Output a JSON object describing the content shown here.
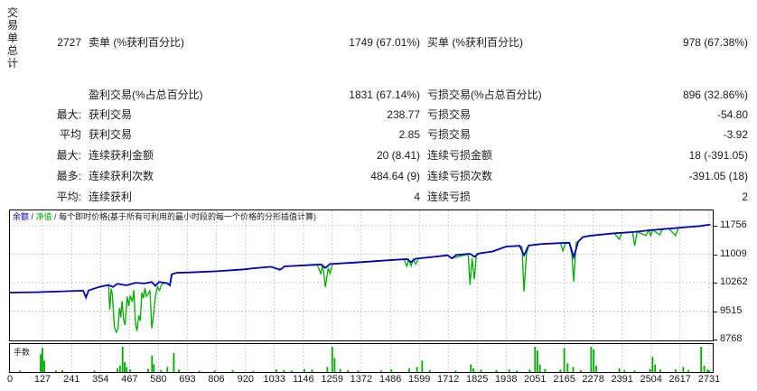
{
  "table": {
    "row_group_label": "交易单总计",
    "rows": [
      {
        "prefix": "2727",
        "label1": "卖单 (%获利百分比)",
        "value1": "1749 (67.01%)",
        "label2": "买单 (%获利百分比)",
        "value2": "978 (67.38%)"
      },
      {
        "prefix": "",
        "label1": "盈利交易(%占总百分比)",
        "value1": "1831 (67.14%)",
        "label2": "亏损交易(%占总百分比)",
        "value2": "896 (32.86%)"
      },
      {
        "prefix": "最大:",
        "label1": "获利交易",
        "value1": "238.77",
        "label2": "亏损交易",
        "value2": "-54.80"
      },
      {
        "prefix": "平均",
        "label1": "获利交易",
        "value1": "2.85",
        "label2": "亏损交易",
        "value2": "-3.92"
      },
      {
        "prefix": "最大:",
        "label1": "连续获利金额",
        "value1": "20 (8.41)",
        "label2": "连续亏损金额",
        "value2": "18 (-391.05)"
      },
      {
        "prefix": "最多:",
        "label1": "连续获利次数",
        "value1": "484.64 (9)",
        "label2": "连续亏损次数",
        "value2": "-391.05 (18)"
      },
      {
        "prefix": "平均:",
        "label1": "连续获利",
        "value1": "4",
        "label2": "连续亏损",
        "value2": "2"
      }
    ]
  },
  "chart_data": {
    "type": "line",
    "legend": {
      "balance": "余额",
      "equity": "净值",
      "sep": " / ",
      "suffix": "每个即时价格(基于所有可利用的最小时段的每一个价格的分形插值计算)"
    },
    "x_ticks": [
      0,
      127,
      241,
      354,
      467,
      580,
      693,
      806,
      920,
      1033,
      1146,
      1259,
      1372,
      1486,
      1599,
      1712,
      1825,
      1938,
      2051,
      2165,
      2278,
      2391,
      2504,
      2617,
      2731
    ],
    "y_ticks": [
      11756,
      11009,
      10262,
      9515,
      8768
    ],
    "x_range": [
      0,
      2745
    ],
    "y_range": [
      8768,
      12160
    ],
    "colors": {
      "balance": "#0000b4",
      "equity": "#00aa00",
      "grid": "#c8c8c8",
      "frame": "#000000"
    },
    "series": [
      {
        "name": "余额",
        "points": [
          [
            0,
            10000
          ],
          [
            102,
            10010
          ],
          [
            286,
            10050
          ],
          [
            297,
            9880
          ],
          [
            307,
            10055
          ],
          [
            349,
            10150
          ],
          [
            385,
            10200
          ],
          [
            402,
            10150
          ],
          [
            420,
            10230
          ],
          [
            455,
            10190
          ],
          [
            491,
            10260
          ],
          [
            526,
            10240
          ],
          [
            554,
            10280
          ],
          [
            568,
            10180
          ],
          [
            582,
            10280
          ],
          [
            614,
            10250
          ],
          [
            625,
            10190
          ],
          [
            632,
            10480
          ],
          [
            650,
            10520
          ],
          [
            702,
            10530
          ],
          [
            808,
            10560
          ],
          [
            914,
            10610
          ],
          [
            950,
            10640
          ],
          [
            1020,
            10680
          ],
          [
            1055,
            10600
          ],
          [
            1073,
            10690
          ],
          [
            1161,
            10720
          ],
          [
            1214,
            10740
          ],
          [
            1232,
            10650
          ],
          [
            1250,
            10750
          ],
          [
            1373,
            10800
          ],
          [
            1479,
            10850
          ],
          [
            1550,
            10880
          ],
          [
            1567,
            10800
          ],
          [
            1585,
            10890
          ],
          [
            1656,
            10940
          ],
          [
            1709,
            10980
          ],
          [
            1726,
            10900
          ],
          [
            1744,
            10990
          ],
          [
            1797,
            11020
          ],
          [
            1814,
            10940
          ],
          [
            1832,
            11030
          ],
          [
            1885,
            11080
          ],
          [
            1938,
            11210
          ],
          [
            1991,
            11230
          ],
          [
            2008,
            10980
          ],
          [
            2026,
            11240
          ],
          [
            2044,
            11250
          ],
          [
            2079,
            11280
          ],
          [
            2150,
            11300
          ],
          [
            2185,
            11310
          ],
          [
            2202,
            10930
          ],
          [
            2220,
            11340
          ],
          [
            2238,
            11460
          ],
          [
            2273,
            11500
          ],
          [
            2361,
            11560
          ],
          [
            2432,
            11590
          ],
          [
            2503,
            11640
          ],
          [
            2573,
            11680
          ],
          [
            2644,
            11720
          ],
          [
            2697,
            11750
          ],
          [
            2736,
            11790
          ]
        ]
      },
      {
        "name": "净值",
        "points": [
          [
            0,
            10000
          ],
          [
            102,
            10010
          ],
          [
            286,
            10050
          ],
          [
            297,
            9850
          ],
          [
            307,
            10055
          ],
          [
            349,
            10150
          ],
          [
            385,
            10200
          ],
          [
            390,
            9550
          ],
          [
            395,
            10100
          ],
          [
            400,
            9950
          ],
          [
            408,
            9100
          ],
          [
            415,
            8960
          ],
          [
            422,
            9050
          ],
          [
            428,
            9600
          ],
          [
            433,
            9350
          ],
          [
            438,
            9780
          ],
          [
            444,
            9300
          ],
          [
            450,
            9150
          ],
          [
            458,
            9900
          ],
          [
            464,
            9650
          ],
          [
            470,
            9920
          ],
          [
            478,
            9760
          ],
          [
            484,
            10060
          ],
          [
            490,
            9200
          ],
          [
            496,
            8990
          ],
          [
            503,
            9400
          ],
          [
            509,
            9260
          ],
          [
            515,
            10000
          ],
          [
            521,
            9850
          ],
          [
            527,
            10120
          ],
          [
            533,
            9900
          ],
          [
            540,
            9960
          ],
          [
            547,
            10060
          ],
          [
            554,
            9060
          ],
          [
            560,
            9350
          ],
          [
            568,
            9900
          ],
          [
            576,
            10150
          ],
          [
            584,
            10060
          ],
          [
            592,
            10210
          ],
          [
            600,
            10240
          ],
          [
            614,
            10250
          ],
          [
            625,
            10190
          ],
          [
            632,
            10480
          ],
          [
            650,
            10520
          ],
          [
            702,
            10530
          ],
          [
            808,
            10560
          ],
          [
            914,
            10610
          ],
          [
            950,
            10640
          ],
          [
            1020,
            10680
          ],
          [
            1055,
            10600
          ],
          [
            1073,
            10690
          ],
          [
            1161,
            10720
          ],
          [
            1200,
            10730
          ],
          [
            1214,
            10500
          ],
          [
            1222,
            10740
          ],
          [
            1232,
            10140
          ],
          [
            1243,
            10650
          ],
          [
            1250,
            10500
          ],
          [
            1260,
            10750
          ],
          [
            1373,
            10800
          ],
          [
            1479,
            10850
          ],
          [
            1540,
            10870
          ],
          [
            1550,
            10690
          ],
          [
            1558,
            10870
          ],
          [
            1567,
            10700
          ],
          [
            1575,
            10880
          ],
          [
            1585,
            10750
          ],
          [
            1595,
            10890
          ],
          [
            1656,
            10940
          ],
          [
            1709,
            10980
          ],
          [
            1726,
            10900
          ],
          [
            1790,
            11010
          ],
          [
            1797,
            10200
          ],
          [
            1805,
            10900
          ],
          [
            1814,
            10350
          ],
          [
            1822,
            11020
          ],
          [
            1832,
            11030
          ],
          [
            1885,
            11080
          ],
          [
            1938,
            11210
          ],
          [
            1991,
            11230
          ],
          [
            2000,
            11200
          ],
          [
            2008,
            10030
          ],
          [
            2017,
            11000
          ],
          [
            2026,
            11240
          ],
          [
            2044,
            11250
          ],
          [
            2079,
            11280
          ],
          [
            2150,
            11300
          ],
          [
            2160,
            11100
          ],
          [
            2170,
            11300
          ],
          [
            2185,
            11310
          ],
          [
            2195,
            11000
          ],
          [
            2202,
            10290
          ],
          [
            2212,
            11320
          ],
          [
            2220,
            11340
          ],
          [
            2238,
            11460
          ],
          [
            2273,
            11500
          ],
          [
            2361,
            11560
          ],
          [
            2380,
            11400
          ],
          [
            2390,
            11570
          ],
          [
            2432,
            11590
          ],
          [
            2440,
            11230
          ],
          [
            2450,
            11600
          ],
          [
            2485,
            11500
          ],
          [
            2495,
            11640
          ],
          [
            2503,
            11500
          ],
          [
            2510,
            11650
          ],
          [
            2538,
            11520
          ],
          [
            2550,
            11680
          ],
          [
            2573,
            11680
          ],
          [
            2600,
            11500
          ],
          [
            2610,
            11700
          ],
          [
            2644,
            11720
          ],
          [
            2697,
            11750
          ],
          [
            2736,
            11790
          ]
        ]
      }
    ],
    "lots_panel": {
      "label": "手数",
      "bars": [
        [
          40,
          0.06
        ],
        [
          120,
          0.7
        ],
        [
          127,
          0.95
        ],
        [
          134,
          0.45
        ],
        [
          180,
          0.06
        ],
        [
          205,
          0.08
        ],
        [
          330,
          0.06
        ],
        [
          420,
          0.15
        ],
        [
          430,
          0.25
        ],
        [
          440,
          1.0
        ],
        [
          448,
          0.4
        ],
        [
          456,
          0.2
        ],
        [
          470,
          0.1
        ],
        [
          540,
          0.12
        ],
        [
          555,
          0.65
        ],
        [
          562,
          0.3
        ],
        [
          590,
          0.08
        ],
        [
          615,
          0.2
        ],
        [
          640,
          0.75
        ],
        [
          660,
          0.1
        ],
        [
          740,
          0.05
        ],
        [
          800,
          0.06
        ],
        [
          870,
          0.08
        ],
        [
          950,
          0.05
        ],
        [
          1040,
          0.1
        ],
        [
          1070,
          0.08
        ],
        [
          1100,
          0.06
        ],
        [
          1150,
          0.12
        ],
        [
          1180,
          0.1
        ],
        [
          1240,
          0.2
        ],
        [
          1259,
          1.0
        ],
        [
          1268,
          0.55
        ],
        [
          1290,
          0.12
        ],
        [
          1320,
          0.08
        ],
        [
          1360,
          0.06
        ],
        [
          1450,
          0.06
        ],
        [
          1490,
          0.1
        ],
        [
          1560,
          0.15
        ],
        [
          1590,
          0.2
        ],
        [
          1610,
          0.45
        ],
        [
          1640,
          0.08
        ],
        [
          1740,
          0.06
        ],
        [
          1800,
          0.3
        ],
        [
          1810,
          0.15
        ],
        [
          1840,
          0.1
        ],
        [
          1900,
          0.08
        ],
        [
          1950,
          0.1
        ],
        [
          1980,
          0.06
        ],
        [
          2030,
          0.1
        ],
        [
          2051,
          1.0
        ],
        [
          2060,
          0.85
        ],
        [
          2070,
          0.3
        ],
        [
          2090,
          0.12
        ],
        [
          2150,
          0.1
        ],
        [
          2165,
          0.95
        ],
        [
          2178,
          0.35
        ],
        [
          2200,
          0.2
        ],
        [
          2230,
          0.08
        ],
        [
          2270,
          1.0
        ],
        [
          2280,
          0.9
        ],
        [
          2290,
          0.25
        ],
        [
          2380,
          0.15
        ],
        [
          2400,
          0.08
        ],
        [
          2440,
          0.06
        ],
        [
          2500,
          0.12
        ],
        [
          2510,
          0.6
        ],
        [
          2520,
          0.3
        ],
        [
          2540,
          0.1
        ],
        [
          2600,
          0.1
        ],
        [
          2630,
          0.2
        ],
        [
          2650,
          0.08
        ],
        [
          2700,
          1.0
        ],
        [
          2712,
          0.25
        ],
        [
          2725,
          0.1
        ],
        [
          2731,
          0.06
        ]
      ]
    }
  }
}
